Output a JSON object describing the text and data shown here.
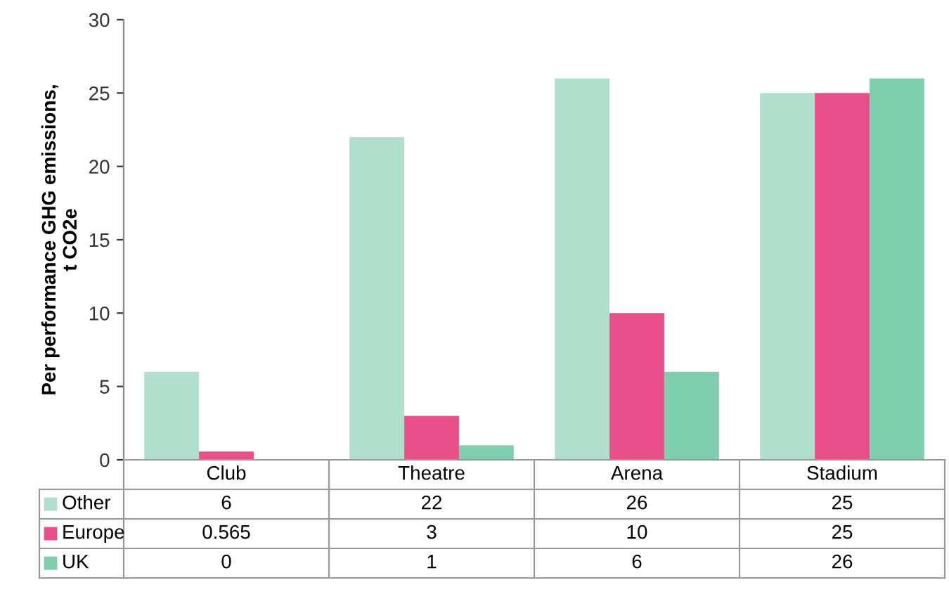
{
  "chart_data": {
    "type": "bar",
    "ylabel": "Per performance GHG emissions,\nt CO2e",
    "categories": [
      "Club",
      "Theatre",
      "Arena",
      "Stadium"
    ],
    "series": [
      {
        "name": "Other",
        "color": "#b2dfcd",
        "values": [
          6,
          22,
          26,
          25
        ]
      },
      {
        "name": "Europe",
        "color": "#e8508a",
        "values": [
          0.565,
          3,
          10,
          25
        ]
      },
      {
        "name": "UK",
        "color": "#7fcfae",
        "values": [
          0,
          1,
          6,
          26
        ]
      }
    ],
    "ylim": [
      0,
      30
    ],
    "yticks": [
      0,
      5,
      10,
      15,
      20,
      25,
      30
    ],
    "grid": false,
    "legend": "bottom",
    "data_labels": true
  }
}
